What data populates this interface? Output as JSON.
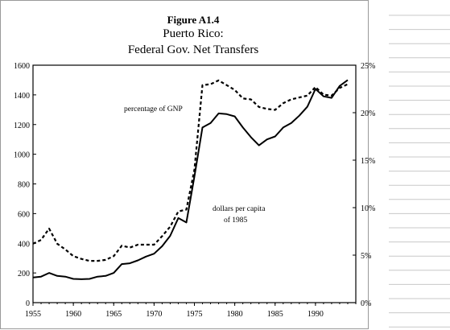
{
  "figure": {
    "label": "Figure A1.4",
    "title_line1": "Puerto Rico:",
    "title_line2": "Federal Gov. Net Transfers"
  },
  "sheet_gridlines": true,
  "chart_data": {
    "type": "line",
    "title": "Federal Gov. Net Transfers",
    "xlim": [
      1955,
      1995
    ],
    "x_ticks": [
      "1955",
      "1960",
      "1965",
      "1970",
      "1975",
      "1980",
      "1985",
      "1990"
    ],
    "y_left": {
      "lim": [
        0,
        1600
      ],
      "ticks": [
        "0",
        "200",
        "400",
        "600",
        "800",
        "1000",
        "1200",
        "1400",
        "1600"
      ]
    },
    "y_right": {
      "lim": [
        0,
        25
      ],
      "ticks": [
        "0%",
        "5%",
        "10%",
        "15%",
        "20%",
        "25%"
      ]
    },
    "grid": false,
    "series": [
      {
        "name": "dollars per capita of 1985",
        "label_lines": [
          "dollars per capita",
          "of 1985"
        ],
        "axis": "left",
        "style": "solid",
        "x": [
          1955,
          1956,
          1957,
          1958,
          1959,
          1960,
          1961,
          1962,
          1963,
          1964,
          1965,
          1966,
          1967,
          1968,
          1969,
          1970,
          1971,
          1972,
          1973,
          1974,
          1975,
          1976,
          1977,
          1978,
          1979,
          1980,
          1981,
          1982,
          1983,
          1984,
          1985,
          1986,
          1987,
          1988,
          1989,
          1990,
          1991,
          1992,
          1993,
          1994
        ],
        "values": [
          170,
          175,
          200,
          180,
          175,
          160,
          158,
          160,
          175,
          180,
          200,
          260,
          265,
          285,
          310,
          330,
          380,
          450,
          570,
          540,
          850,
          1180,
          1210,
          1275,
          1270,
          1255,
          1180,
          1115,
          1060,
          1100,
          1120,
          1180,
          1210,
          1260,
          1320,
          1440,
          1390,
          1380,
          1460,
          1500
        ]
      },
      {
        "name": "percentage of GNP",
        "label_lines": [
          "percentage of GNP"
        ],
        "axis": "right",
        "style": "dashed",
        "x": [
          1955,
          1956,
          1957,
          1958,
          1959,
          1960,
          1961,
          1962,
          1963,
          1964,
          1965,
          1966,
          1967,
          1968,
          1969,
          1970,
          1971,
          1972,
          1973,
          1974,
          1975,
          1976,
          1977,
          1978,
          1979,
          1980,
          1981,
          1982,
          1983,
          1984,
          1985,
          1986,
          1987,
          1988,
          1989,
          1990,
          1991,
          1992,
          1993,
          1994
        ],
        "values": [
          6.2,
          6.6,
          7.8,
          6.2,
          5.6,
          4.9,
          4.6,
          4.4,
          4.4,
          4.5,
          4.9,
          6.0,
          5.8,
          6.1,
          6.1,
          6.1,
          7.0,
          8.0,
          9.6,
          9.8,
          14.0,
          22.9,
          23.0,
          23.4,
          22.9,
          22.4,
          21.5,
          21.4,
          20.6,
          20.4,
          20.3,
          21.0,
          21.4,
          21.6,
          21.8,
          22.7,
          21.9,
          21.8,
          22.6,
          23.0
        ]
      }
    ]
  }
}
